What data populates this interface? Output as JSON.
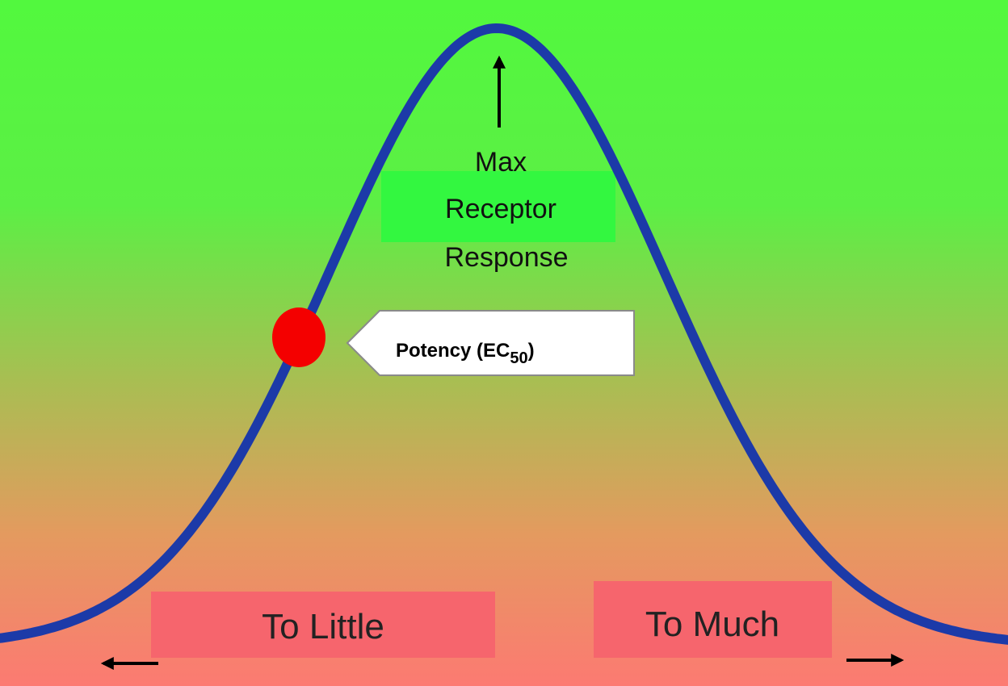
{
  "diagram": {
    "peak_label": [
      "Max",
      "Receptor",
      "Response"
    ],
    "potency_label": {
      "text": "Potency (EC",
      "subscript": "50",
      "suffix": ")"
    },
    "left_label": "To Little",
    "right_label": "To Much"
  }
}
